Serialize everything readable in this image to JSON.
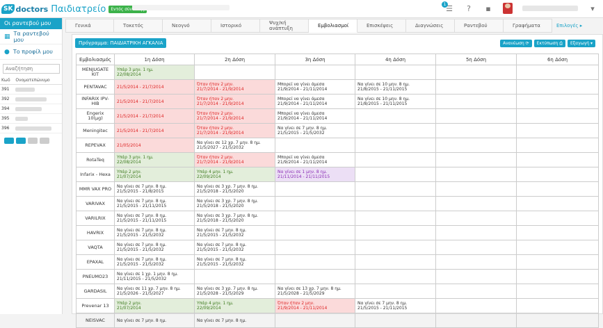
{
  "app": {
    "logo_badge": "SK",
    "logo_word": "doctors",
    "app_name": "Παιδιατρείο",
    "status": "Εντός σύνδεσης",
    "notification_count": "1"
  },
  "sidebar": {
    "new_appointment": "Οι ραντεβού μου",
    "links": [
      {
        "label": "Τα ραντεβού μου",
        "icon": "calendar-icon"
      },
      {
        "label": "Το προφίλ μου",
        "icon": "user-icon"
      }
    ],
    "search_placeholder": "Αναζήτηση",
    "patients_header": [
      "Κωδ",
      "Ονοματεπώνυμο"
    ],
    "patients": [
      {
        "code": "391"
      },
      {
        "code": "392"
      },
      {
        "code": "394"
      },
      {
        "code": "395"
      },
      {
        "code": "396"
      }
    ]
  },
  "tabs": [
    {
      "label": "Γενικά",
      "active": false
    },
    {
      "label": "Τοκετός",
      "active": false
    },
    {
      "label": "Νεογνό",
      "active": false
    },
    {
      "label": "Ιστορικό",
      "active": false
    },
    {
      "label": "Ψυχ/κή ανάπτυξη",
      "active": false
    },
    {
      "label": "Εμβολιασμοί",
      "active": true
    },
    {
      "label": "Επισκέψεις",
      "active": false
    },
    {
      "label": "Διαγνώσεις",
      "active": false
    },
    {
      "label": "Ραντεβού",
      "active": false
    },
    {
      "label": "Γραφήματα",
      "active": false
    }
  ],
  "tabs_more": "Επιλογές ▸",
  "program_button": "Πρόγραμμα: ΠΑΙΔΙΑΤΡΙΚΗ ΑΓΚΑΛΙΑ",
  "actions": {
    "refresh": "Ανανέωση ⟳",
    "print": "Εκτύπωση ⎙",
    "export": "Εξαγωγή ▾"
  },
  "table": {
    "headers": [
      "Εμβολιασμός",
      "1η Δόση",
      "2η Δόση",
      "3η Δόση",
      "4η Δόση",
      "5η Δόση",
      "6η Δόση"
    ],
    "rows": [
      {
        "name": "MENJUGATE KIT",
        "cells": [
          {
            "s": "g",
            "l1": "Υπάρ 3 μην. 1 ημ.",
            "l2": "22/08/2014"
          },
          null,
          null,
          null,
          null,
          null
        ]
      },
      {
        "name": "PENTAVAC",
        "cells": [
          {
            "s": "r",
            "l1": "",
            "l2": "21/5/2014 - 21/7/2014"
          },
          {
            "s": "r",
            "l1": "Όταν ήταν 2 μην.",
            "l2": "21/7/2014 - 21/9/2014"
          },
          {
            "s": "t",
            "l1": "Μπορεί να γίνει άμεσα",
            "l2": "21/9/2014 - 21/11/2014"
          },
          {
            "s": "t",
            "l1": "Να γίνει σε 10 μην. 8 ημ.",
            "l2": "21/8/2015 - 21/11/2015"
          },
          null,
          null
        ]
      },
      {
        "name": "INFARIX IPV-HIB",
        "cells": [
          {
            "s": "r",
            "l1": "",
            "l2": "21/5/2014 - 21/7/2014"
          },
          {
            "s": "r",
            "l1": "Όταν ήταν 2 μην.",
            "l2": "21/7/2014 - 21/9/2014"
          },
          {
            "s": "t",
            "l1": "Μπορεί να γίνει άμεσα",
            "l2": "21/9/2014 - 21/11/2014"
          },
          {
            "s": "t",
            "l1": "Να γίνει σε 10 μην. 8 ημ.",
            "l2": "21/8/2015 - 21/11/2015"
          },
          null,
          null
        ]
      },
      {
        "name": "Engerix 10(μg)",
        "cells": [
          {
            "s": "r",
            "l1": "",
            "l2": "21/5/2014 - 21/7/2014"
          },
          {
            "s": "r",
            "l1": "Όταν ήταν 2 μην.",
            "l2": "21/7/2014 - 21/9/2014"
          },
          {
            "s": "t",
            "l1": "Μπορεί να γίνει άμεσα",
            "l2": "21/9/2014 - 21/11/2014"
          },
          null,
          null,
          null
        ]
      },
      {
        "name": "Meningitec",
        "cells": [
          {
            "s": "r",
            "l1": "",
            "l2": "21/5/2014 - 21/7/2014"
          },
          {
            "s": "r",
            "l1": "Όταν ήταν 2 μην.",
            "l2": "21/7/2014 - 21/9/2014"
          },
          {
            "s": "t",
            "l1": "Να γίνει σε 7 μην. 8 ημ.",
            "l2": "21/5/2015 - 21/5/2032"
          },
          null,
          null,
          null
        ]
      },
      {
        "name": "REPEVAX",
        "cells": [
          {
            "s": "r",
            "l1": "",
            "l2": "21/05/2014"
          },
          {
            "s": "t",
            "l1": "Να γίνει σε 12 χρ. 7 μην. 8 ημ.",
            "l2": "21/5/2027 - 21/5/2032"
          },
          null,
          null,
          null,
          null
        ]
      },
      {
        "name": "RotaTeq",
        "cells": [
          {
            "s": "g",
            "l1": "Υπάρ 3 μην. 1 ημ.",
            "l2": "22/08/2014"
          },
          {
            "s": "r",
            "l1": "Όταν ήταν 2 μην.",
            "l2": "21/7/2014 - 21/9/2014"
          },
          {
            "s": "t",
            "l1": "Μπορεί να γίνει άμεσα",
            "l2": "21/9/2014 - 21/11/2014"
          },
          null,
          null,
          null
        ]
      },
      {
        "name": "Infarix - Hexa",
        "cells": [
          {
            "s": "g",
            "l1": "Υπάρ 2 μην.",
            "l2": "21/07/2014"
          },
          {
            "s": "g",
            "l1": "Υπάρ 4 μην. 1 ημ.",
            "l2": "22/09/2014"
          },
          {
            "s": "p",
            "l1": "Να γίνει σε 1 μην. 8 ημ.",
            "l2": "21/11/2014 - 21/11/2015"
          },
          null,
          null,
          null
        ]
      },
      {
        "name": "MMR VAX PRO",
        "cells": [
          {
            "s": "t",
            "l1": "Να γίνει σε 7 μην. 8 ημ.",
            "l2": "21/5/2015 - 21/8/2015"
          },
          {
            "s": "t",
            "l1": "Να γίνει σε 3 χρ. 7 μην. 8 ημ.",
            "l2": "21/5/2018 - 21/5/2020"
          },
          null,
          null,
          null,
          null
        ]
      },
      {
        "name": "VARIVAX",
        "cells": [
          {
            "s": "t",
            "l1": "Να γίνει σε 7 μην. 8 ημ.",
            "l2": "21/5/2015 - 21/11/2015"
          },
          {
            "s": "t",
            "l1": "Να γίνει σε 3 χρ. 7 μην. 8 ημ.",
            "l2": "21/5/2018 - 21/5/2020"
          },
          null,
          null,
          null,
          null
        ]
      },
      {
        "name": "VARILRIX",
        "cells": [
          {
            "s": "t",
            "l1": "Να γίνει σε 7 μην. 8 ημ.",
            "l2": "21/5/2015 - 21/11/2015"
          },
          {
            "s": "t",
            "l1": "Να γίνει σε 3 χρ. 7 μην. 8 ημ.",
            "l2": "21/5/2018 - 21/5/2020"
          },
          null,
          null,
          null,
          null
        ]
      },
      {
        "name": "HAVRIX",
        "cells": [
          {
            "s": "t",
            "l1": "Να γίνει σε 7 μην. 8 ημ.",
            "l2": "21/5/2015 - 21/5/2032"
          },
          {
            "s": "t",
            "l1": "Να γίνει σε 7 μην. 8 ημ.",
            "l2": "21/5/2015 - 21/5/2032"
          },
          null,
          null,
          null,
          null
        ]
      },
      {
        "name": "VAQTA",
        "cells": [
          {
            "s": "t",
            "l1": "Να γίνει σε 7 μην. 8 ημ.",
            "l2": "21/5/2015 - 21/5/2032"
          },
          {
            "s": "t",
            "l1": "Να γίνει σε 7 μην. 8 ημ.",
            "l2": "21/5/2015 - 21/5/2032"
          },
          null,
          null,
          null,
          null
        ]
      },
      {
        "name": "EPAXAL",
        "cells": [
          {
            "s": "t",
            "l1": "Να γίνει σε 7 μην. 8 ημ.",
            "l2": "21/5/2015 - 21/5/2032"
          },
          {
            "s": "t",
            "l1": "Να γίνει σε 7 μην. 8 ημ.",
            "l2": "21/5/2015 - 21/5/2032"
          },
          null,
          null,
          null,
          null
        ]
      },
      {
        "name": "PNEUMO23",
        "cells": [
          {
            "s": "t",
            "l1": "Να γίνει σε 1 χρ. 1 μην. 8 ημ.",
            "l2": "21/11/2015 - 21/5/2032"
          },
          null,
          null,
          null,
          null,
          null
        ]
      },
      {
        "name": "GARDASIL",
        "cells": [
          {
            "s": "t",
            "l1": "Να γίνει σε 11 χρ. 7 μην. 8 ημ.",
            "l2": "21/5/2026 - 21/5/2027"
          },
          {
            "s": "t",
            "l1": "Να γίνει σε 3 χρ. 7 μην. 8 ημ.",
            "l2": "21/5/2028 - 21/5/2029"
          },
          {
            "s": "t",
            "l1": "Να γίνει σε 13 χρ. 7 μην. 8 ημ.",
            "l2": "21/5/2028 - 21/5/2029"
          },
          null,
          null,
          null
        ]
      },
      {
        "name": "Prevenar 13",
        "cells": [
          {
            "s": "g",
            "l1": "Υπάρ 2 μην.",
            "l2": "21/07/2014"
          },
          {
            "s": "g",
            "l1": "Υπάρ 4 μην. 1 ημ.",
            "l2": "22/09/2014"
          },
          {
            "s": "r",
            "l1": "Όταν ήταν 2 μην.",
            "l2": "21/9/2014 - 21/11/2014"
          },
          {
            "s": "t",
            "l1": "Να γίνει σε 7 μην. 8 ημ.",
            "l2": "21/5/2015 - 21/11/2015"
          },
          null,
          null
        ]
      },
      {
        "name": "NEISVAC",
        "cells": [
          {
            "s": "t",
            "l1": "Να γίνει σε 7 μην. 8 ημ.",
            "l2": ""
          },
          {
            "s": "t",
            "l1": "Να γίνει σε 7 μην. 8 ημ.",
            "l2": ""
          },
          null,
          null,
          null,
          null
        ]
      }
    ]
  },
  "colors": {
    "accent": "#1aa3c8",
    "green_cell": "#e3eedb",
    "red_cell": "#fbdada",
    "purple_cell": "#ecdff5"
  }
}
